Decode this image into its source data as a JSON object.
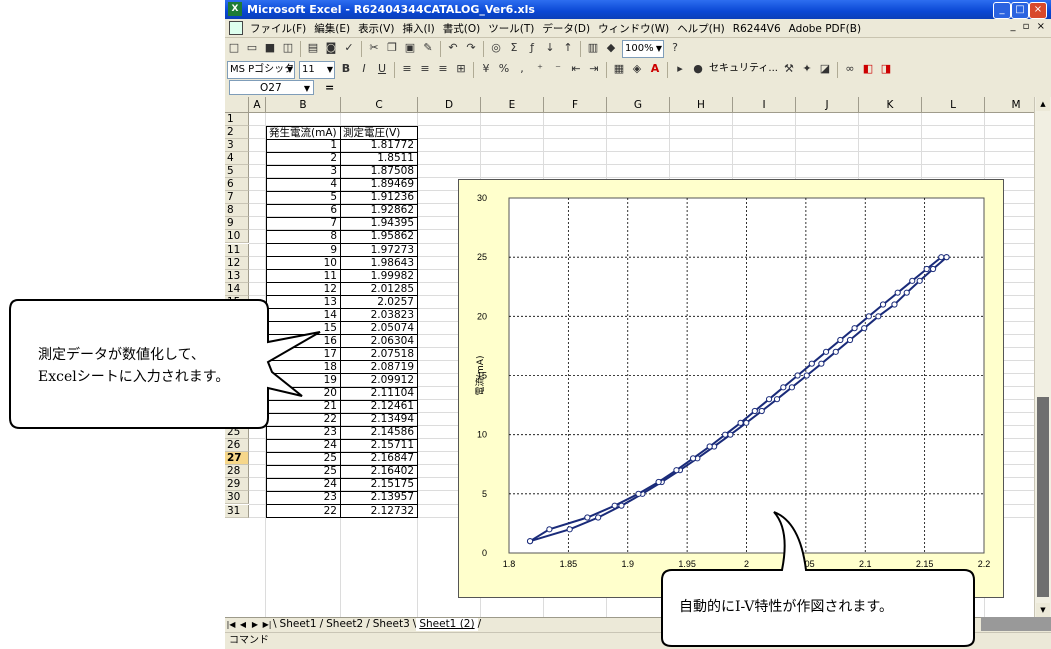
{
  "window": {
    "app_title": "Microsoft Excel - R62404344CATALOG_Ver6.xls",
    "mdi_controls": "_ ▫ ×"
  },
  "menu": [
    "ファイル(F)",
    "編集(E)",
    "表示(V)",
    "挿入(I)",
    "書式(O)",
    "ツール(T)",
    "データ(D)",
    "ウィンドウ(W)",
    "ヘルプ(H)",
    "R6244V6",
    "Adobe PDF(B)"
  ],
  "toolbar": {
    "zoom": "100%",
    "font_name": "MS Pゴシック",
    "font_size": "11",
    "security_label": "セキュリティ..."
  },
  "formula_bar": {
    "name_box": "O27",
    "equals": "="
  },
  "columns": [
    "A",
    "B",
    "C",
    "D",
    "E",
    "F",
    "G",
    "H",
    "I",
    "J",
    "K",
    "L",
    "M"
  ],
  "rows": [
    "1",
    "2",
    "3",
    "4",
    "5",
    "6",
    "7",
    "8",
    "9",
    "10",
    "11",
    "12",
    "13",
    "14",
    "15",
    "16",
    "17",
    "18",
    "19",
    "20",
    "21",
    "22",
    "23",
    "24",
    "25",
    "26",
    "27",
    "28",
    "29",
    "30",
    "31"
  ],
  "active_row": "27",
  "table": {
    "header_current": "発生電流(mA)",
    "header_voltage": "測定電圧(V)",
    "current": [
      "1",
      "2",
      "3",
      "4",
      "5",
      "6",
      "7",
      "8",
      "9",
      "10",
      "11",
      "12",
      "13",
      "14",
      "15",
      "16",
      "17",
      "18",
      "19",
      "20",
      "21",
      "22",
      "23",
      "24",
      "25",
      "25",
      "24",
      "23",
      "22"
    ],
    "voltage": [
      "1.81772",
      "1.8511",
      "1.87508",
      "1.89469",
      "1.91236",
      "1.92862",
      "1.94395",
      "1.95862",
      "1.97273",
      "1.98643",
      "1.99982",
      "2.01285",
      "2.0257",
      "2.03823",
      "2.05074",
      "2.06304",
      "2.07518",
      "2.08719",
      "2.09912",
      "2.11104",
      "2.12461",
      "2.13494",
      "2.14586",
      "2.15711",
      "2.16847",
      "2.16402",
      "2.15175",
      "2.13957",
      "2.12732"
    ]
  },
  "sheet_tabs": [
    "Sheet1",
    "Sheet2",
    "Sheet3",
    "Sheet1 (2)"
  ],
  "active_tab": "Sheet1 (2)",
  "status": "コマンド",
  "callouts": {
    "left_line1": "測定データが数値化して、",
    "left_line2": "Excelシートに入力されます。",
    "bottom": "自動的にI-V特性が作図されます。"
  },
  "chart_data": {
    "type": "scatter",
    "title": "",
    "xlabel": "",
    "ylabel": "電流(mA)",
    "xlim": [
      1.8,
      2.2
    ],
    "ylim": [
      0,
      30
    ],
    "xticks": [
      "1.8",
      "1.85",
      "1.9",
      "1.95",
      "2",
      "2.05",
      "2.1",
      "2.15",
      "2.2"
    ],
    "yticks": [
      "0",
      "5",
      "10",
      "15",
      "20",
      "25",
      "30"
    ],
    "grid": true,
    "series": [
      {
        "x": [
          1.81772,
          1.8511,
          1.87508,
          1.89469,
          1.91236,
          1.92862,
          1.94395,
          1.95862,
          1.97273,
          1.98643,
          1.99982,
          2.01285,
          2.0257,
          2.03823,
          2.05074,
          2.06304,
          2.07518,
          2.08719,
          2.09912,
          2.11104,
          2.12461,
          2.13494,
          2.14586,
          2.15711,
          2.16847
        ],
        "y": [
          1,
          2,
          3,
          4,
          5,
          6,
          7,
          8,
          9,
          10,
          11,
          12,
          13,
          14,
          15,
          16,
          17,
          18,
          19,
          20,
          21,
          22,
          23,
          24,
          25
        ]
      },
      {
        "x": [
          2.16847,
          2.16402,
          2.15175,
          2.13957,
          2.12732,
          2.115,
          2.103,
          2.091,
          2.079,
          2.067,
          2.055,
          2.043,
          2.031,
          2.019,
          2.007,
          1.995,
          1.982,
          1.969,
          1.955,
          1.941,
          1.926,
          1.909,
          1.889,
          1.866,
          1.834,
          1.81772
        ],
        "y": [
          25,
          25,
          24,
          23,
          22,
          21,
          20,
          19,
          18,
          17,
          16,
          15,
          14,
          13,
          12,
          11,
          10,
          9,
          8,
          7,
          6,
          5,
          4,
          3,
          2,
          1
        ]
      }
    ],
    "colors": {
      "line": "#1a2b7a",
      "marker_fill": "#ffffff",
      "plot_bg": "#ffffff",
      "chart_bg": "#ffffcc"
    }
  }
}
